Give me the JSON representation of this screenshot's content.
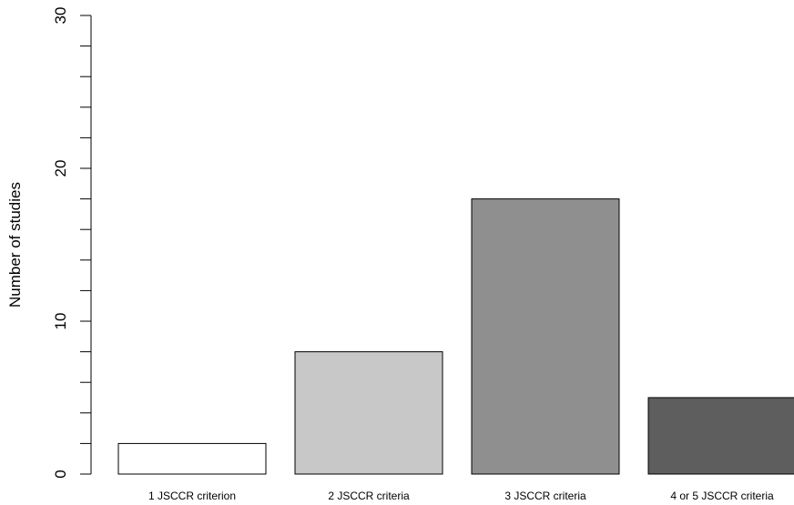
{
  "chart_data": {
    "type": "bar",
    "title": "",
    "xlabel": "",
    "ylabel": "Number of studies",
    "categories": [
      "1 JSCCR criterion",
      "2 JSCCR criteria",
      "3 JSCCR criteria",
      "4 or 5 JSCCR criteria"
    ],
    "values": [
      2,
      8,
      18,
      5
    ],
    "colors": [
      "#ffffff",
      "#c8c8c8",
      "#8f8f8f",
      "#5e5e5e"
    ],
    "ylim": [
      0,
      30
    ],
    "y_major_ticks": [
      0,
      10,
      20,
      30
    ],
    "y_minor_step": 2,
    "grid": false,
    "legend": "none"
  }
}
